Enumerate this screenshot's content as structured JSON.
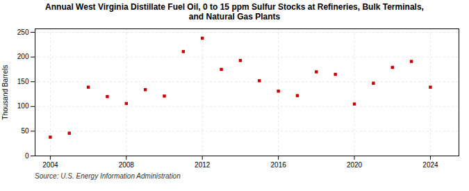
{
  "chart_data": {
    "type": "scatter",
    "title": "Annual West Virginia Distillate Fuel Oil, 0 to 15 ppm Sulfur Stocks at Refineries, Bulk Terminals,\nand Natural Gas Plants",
    "ylabel": "Thousand Barrels",
    "source": "Source: U.S. Energy Information Administration",
    "x": [
      2004,
      2005,
      2006,
      2007,
      2008,
      2009,
      2010,
      2011,
      2012,
      2013,
      2014,
      2015,
      2016,
      2017,
      2018,
      2019,
      2020,
      2021,
      2022,
      2023,
      2024
    ],
    "values": [
      38,
      46,
      139,
      120,
      106,
      134,
      121,
      211,
      238,
      175,
      193,
      152,
      131,
      122,
      170,
      165,
      105,
      147,
      179,
      191,
      139
    ],
    "color": "#cc0000",
    "marker": "square",
    "xlim": [
      2003.2,
      2025.5
    ],
    "xticks": [
      2004,
      2008,
      2012,
      2016,
      2020,
      2024
    ],
    "ylim": [
      0,
      257
    ],
    "yticks": [
      0,
      50,
      100,
      150,
      200,
      250
    ],
    "grid": true
  }
}
